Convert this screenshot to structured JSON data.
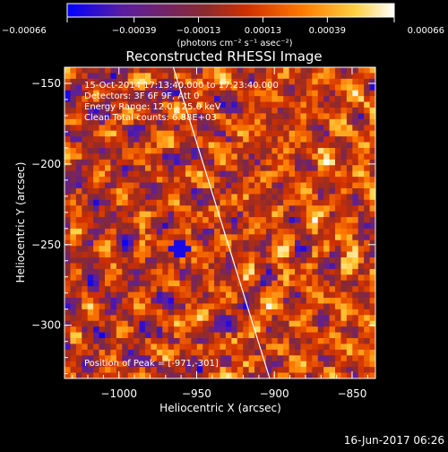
{
  "chart_data": {
    "type": "heatmap",
    "title": "Reconstructed RHESSI Image",
    "xlabel": "Heliocentric X (arcsec)",
    "ylabel": "Heliocentric Y (arcsec)",
    "xlim": [
      -1035,
      -835
    ],
    "ylim": [
      -333,
      -140
    ],
    "x_ticks": [
      -1000,
      -950,
      -900,
      -850
    ],
    "x_tick_labels": [
      "−1000",
      "−950",
      "−900",
      "−850"
    ],
    "y_ticks": [
      -150,
      -200,
      -250,
      -300
    ],
    "y_tick_labels": [
      "−150",
      "−200",
      "−250",
      "−300"
    ],
    "colorbar": {
      "range": [
        -0.00066,
        0.00066
      ],
      "ticks": [
        -0.00066,
        -0.00039,
        -0.00013,
        0.00013,
        0.00039,
        0.00066
      ],
      "tick_labels": [
        "−0.00066",
        "−0.00039",
        "−0.00013",
        "0.00013",
        "0.00039",
        "0.00066"
      ],
      "units_label": "(photons cm⁻² s⁻¹ asec⁻²)",
      "colors": [
        "#0000ff",
        "#5a1ea0",
        "#8a2a30",
        "#d03000",
        "#ff7a00",
        "#ffd040",
        "#ffffff"
      ]
    },
    "annotations": [
      "15-Oct-2014 17:13:40.000 to 17:23:40.000",
      "Detectors: 3F 6F 9F, Att 0",
      "Energy Range: 12.0 - 25.0 keV",
      "Clean     Total counts: 6.88E+03"
    ],
    "peak_label": "Position of Peak = [-971,-301]",
    "peak_position": [
      -971,
      -301
    ],
    "limb_line": [
      [
        -965,
        -140
      ],
      [
        -903,
        -333
      ]
    ],
    "grid": false
  },
  "footer": {
    "timestamp": "16-Jun-2017 06:26"
  }
}
